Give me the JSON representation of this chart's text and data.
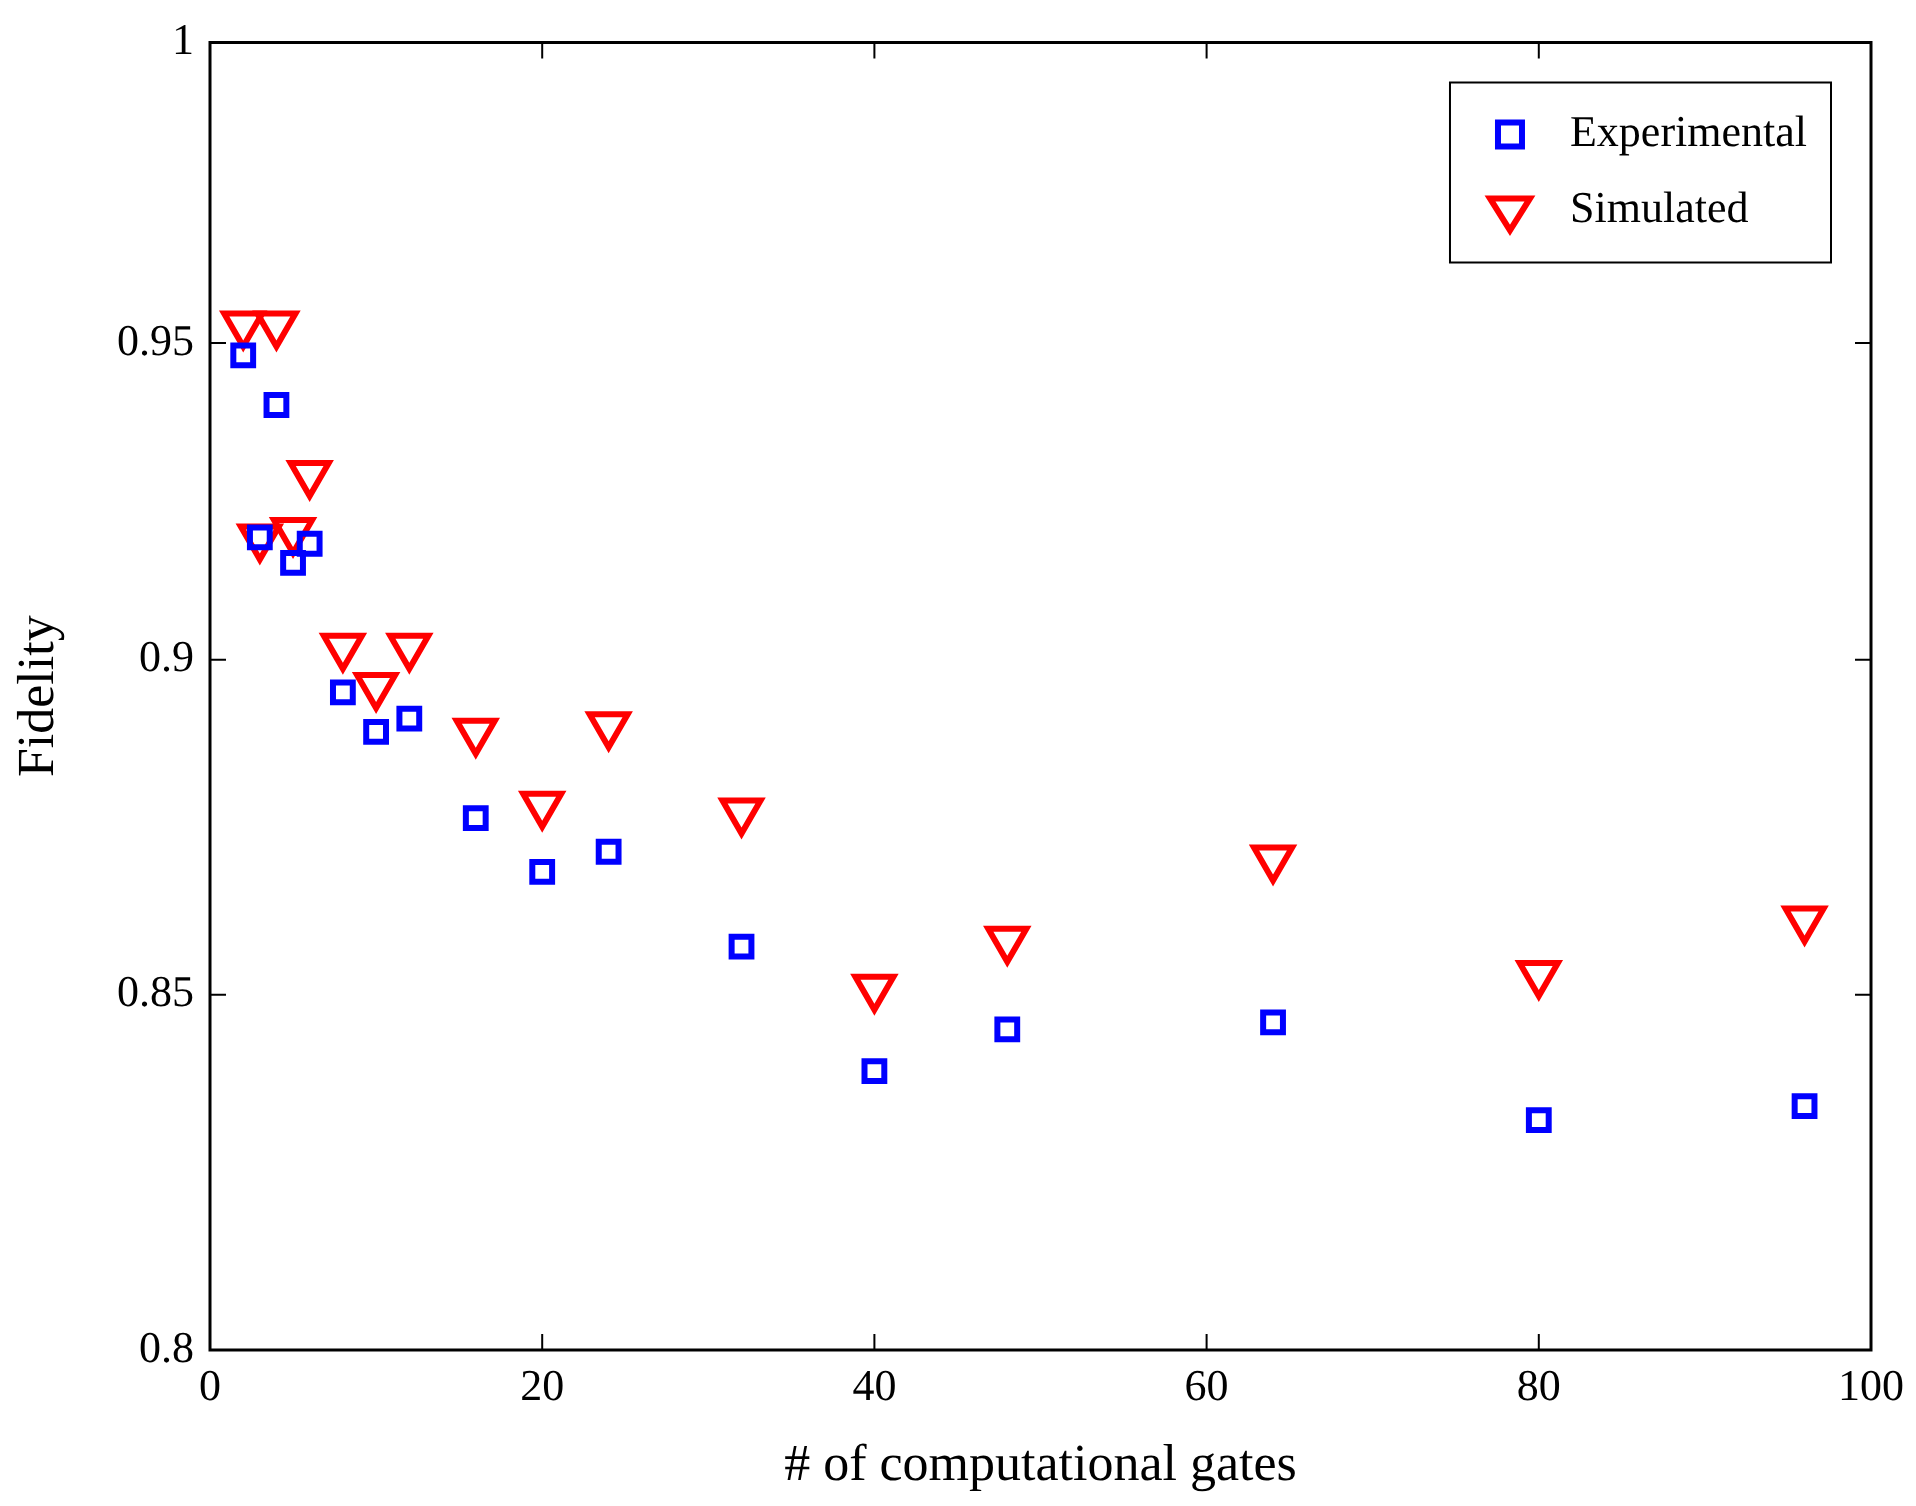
{
  "chart_data": {
    "type": "scatter",
    "xlabel": "# of computational gates",
    "ylabel": "Fidelity",
    "log": "y",
    "grid": false,
    "legend": "top right",
    "xlim": [
      0,
      100
    ],
    "xticks": [
      0,
      20,
      40,
      60,
      80,
      100
    ],
    "ylim": [
      0.8,
      1
    ],
    "yticks": [
      0.8,
      0.85,
      0.9,
      0.95,
      1
    ],
    "series": [
      {
        "name": "Experimental",
        "color": "#0000ff",
        "marker": "square",
        "x": [
          2,
          3,
          4,
          5,
          6,
          8,
          10,
          12,
          16,
          20,
          24,
          32,
          40,
          48,
          64,
          80,
          96
        ],
        "values": [
          0.948,
          0.919,
          0.94,
          0.915,
          0.918,
          0.895,
          0.889,
          0.891,
          0.876,
          0.868,
          0.871,
          0.857,
          0.839,
          0.845,
          0.846,
          0.832,
          0.834
        ]
      },
      {
        "name": "Simulated",
        "color": "#ff0000",
        "marker": "triangle",
        "x": [
          2,
          3,
          4,
          5,
          6,
          8,
          10,
          12,
          16,
          20,
          24,
          32,
          40,
          48,
          64,
          80,
          96
        ],
        "values": [
          0.953,
          0.919,
          0.953,
          0.92,
          0.929,
          0.902,
          0.896,
          0.902,
          0.889,
          0.878,
          0.89,
          0.877,
          0.851,
          0.858,
          0.87,
          0.853,
          0.861
        ]
      }
    ]
  }
}
